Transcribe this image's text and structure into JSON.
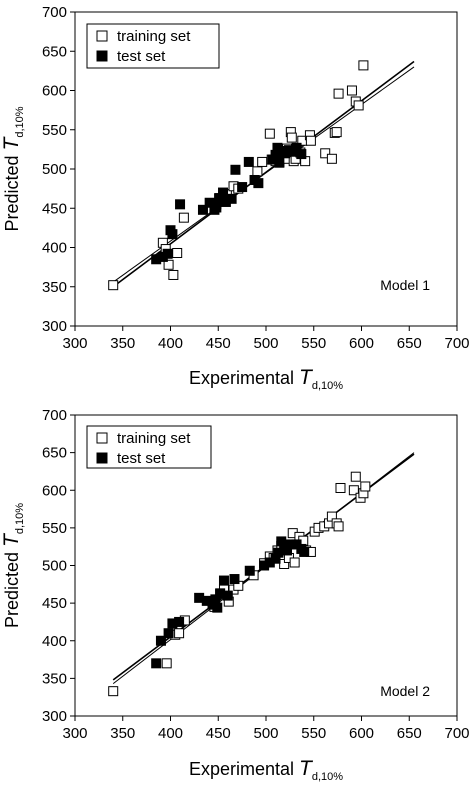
{
  "chart_data": [
    {
      "type": "scatter",
      "model_label": "Model 1",
      "xlabel": {
        "main": "Experimental ",
        "var": "T",
        "sub": "d,10%"
      },
      "ylabel": {
        "main": "Predicted ",
        "var": "T",
        "sub": "d,10%"
      },
      "xlim": [
        300,
        700
      ],
      "ylim": [
        300,
        700
      ],
      "xticks": [
        300,
        350,
        400,
        450,
        500,
        550,
        600,
        650,
        700
      ],
      "yticks": [
        300,
        350,
        400,
        450,
        500,
        550,
        600,
        650,
        700
      ],
      "legend": {
        "position": "top-left",
        "entries": [
          {
            "label": "training set",
            "marker": "open-square"
          },
          {
            "label": "test set",
            "marker": "filled-square"
          }
        ]
      },
      "series": [
        {
          "name": "training set",
          "marker": "open-square",
          "points": [
            [
              340,
              352
            ],
            [
              392,
              406
            ],
            [
              395,
              398
            ],
            [
              398,
              378
            ],
            [
              403,
              365
            ],
            [
              407,
              393
            ],
            [
              414,
              438
            ],
            [
              448,
              455
            ],
            [
              451,
              463
            ],
            [
              459,
              468
            ],
            [
              466,
              478
            ],
            [
              471,
              475
            ],
            [
              491,
              497
            ],
            [
              496,
              509
            ],
            [
              504,
              545
            ],
            [
              506,
              512
            ],
            [
              510,
              510
            ],
            [
              514,
              509
            ],
            [
              517,
              520
            ],
            [
              520,
              513
            ],
            [
              522,
              526
            ],
            [
              526,
              547
            ],
            [
              527,
              540
            ],
            [
              529,
              510
            ],
            [
              531,
              513
            ],
            [
              536,
              521
            ],
            [
              538,
              536
            ],
            [
              541,
              510
            ],
            [
              546,
              543
            ],
            [
              547,
              536
            ],
            [
              562,
              520
            ],
            [
              569,
              513
            ],
            [
              572,
              546
            ],
            [
              574,
              547
            ],
            [
              576,
              596
            ],
            [
              590,
              600
            ],
            [
              594,
              586
            ],
            [
              597,
              581
            ],
            [
              602,
              632
            ]
          ]
        },
        {
          "name": "test set",
          "marker": "filled-square",
          "points": [
            [
              385,
              385
            ],
            [
              392,
              388
            ],
            [
              397,
              392
            ],
            [
              400,
              422
            ],
            [
              402,
              417
            ],
            [
              410,
              455
            ],
            [
              434,
              448
            ],
            [
              441,
              457
            ],
            [
              446,
              448
            ],
            [
              448,
              451
            ],
            [
              451,
              462
            ],
            [
              453,
              459
            ],
            [
              455,
              470
            ],
            [
              458,
              458
            ],
            [
              464,
              462
            ],
            [
              468,
              499
            ],
            [
              475,
              477
            ],
            [
              482,
              509
            ],
            [
              488,
              486
            ],
            [
              492,
              482
            ],
            [
              507,
              512
            ],
            [
              510,
              518
            ],
            [
              512,
              527
            ],
            [
              514,
              508
            ],
            [
              517,
              523
            ],
            [
              520,
              520
            ],
            [
              524,
              524
            ],
            [
              527,
              522
            ],
            [
              532,
              527
            ],
            [
              537,
              519
            ]
          ]
        }
      ],
      "lines": [
        {
          "x": [
            340,
            655
          ],
          "y": [
            350,
            637
          ]
        },
        {
          "x": [
            340,
            655
          ],
          "y": [
            356,
            630
          ]
        }
      ]
    },
    {
      "type": "scatter",
      "model_label": "Model 2",
      "xlabel": {
        "main": "Experimental ",
        "var": "T",
        "sub": "d,10%"
      },
      "ylabel": {
        "main": "Predicted ",
        "var": "T",
        "sub": "d,10%"
      },
      "xlim": [
        300,
        700
      ],
      "ylim": [
        300,
        700
      ],
      "xticks": [
        300,
        350,
        400,
        450,
        500,
        550,
        600,
        650,
        700
      ],
      "yticks": [
        300,
        350,
        400,
        450,
        500,
        550,
        600,
        650,
        700
      ],
      "legend": {
        "position": "top-left",
        "entries": [
          {
            "label": "training set",
            "marker": "open-square"
          },
          {
            "label": "test set",
            "marker": "filled-square"
          }
        ]
      },
      "series": [
        {
          "name": "training set",
          "marker": "open-square",
          "points": [
            [
              340,
              333
            ],
            [
              396,
              370
            ],
            [
              405,
              408
            ],
            [
              409,
              410
            ],
            [
              415,
              427
            ],
            [
              446,
              445
            ],
            [
              452,
              462
            ],
            [
              456,
              468
            ],
            [
              461,
              452
            ],
            [
              466,
              468
            ],
            [
              471,
              473
            ],
            [
              487,
              487
            ],
            [
              498,
              503
            ],
            [
              504,
              512
            ],
            [
              508,
              510
            ],
            [
              512,
              520
            ],
            [
              516,
              526
            ],
            [
              519,
              502
            ],
            [
              521,
              522
            ],
            [
              524,
              510
            ],
            [
              528,
              543
            ],
            [
              530,
              504
            ],
            [
              535,
              538
            ],
            [
              539,
              533
            ],
            [
              542,
              520
            ],
            [
              547,
              518
            ],
            [
              551,
              545
            ],
            [
              555,
              550
            ],
            [
              561,
              552
            ],
            [
              566,
              556
            ],
            [
              569,
              565
            ],
            [
              574,
              556
            ],
            [
              576,
              552
            ],
            [
              578,
              603
            ],
            [
              592,
              600
            ],
            [
              594,
              618
            ],
            [
              599,
              590
            ],
            [
              602,
              596
            ],
            [
              604,
              605
            ]
          ]
        },
        {
          "name": "test set",
          "marker": "filled-square",
          "points": [
            [
              385,
              370
            ],
            [
              390,
              400
            ],
            [
              398,
              410
            ],
            [
              402,
              423
            ],
            [
              409,
              425
            ],
            [
              430,
              457
            ],
            [
              438,
              453
            ],
            [
              444,
              448
            ],
            [
              447,
              455
            ],
            [
              449,
              444
            ],
            [
              452,
              463
            ],
            [
              456,
              480
            ],
            [
              460,
              460
            ],
            [
              467,
              482
            ],
            [
              483,
              493
            ],
            [
              498,
              500
            ],
            [
              504,
              504
            ],
            [
              510,
              509
            ],
            [
              513,
              517
            ],
            [
              516,
              532
            ],
            [
              519,
              525
            ],
            [
              522,
              520
            ],
            [
              526,
              528
            ],
            [
              532,
              528
            ],
            [
              537,
              522
            ],
            [
              540,
              518
            ]
          ]
        }
      ],
      "lines": [
        {
          "x": [
            340,
            655
          ],
          "y": [
            348,
            648
          ]
        },
        {
          "x": [
            340,
            655
          ],
          "y": [
            343,
            650
          ]
        }
      ]
    }
  ]
}
